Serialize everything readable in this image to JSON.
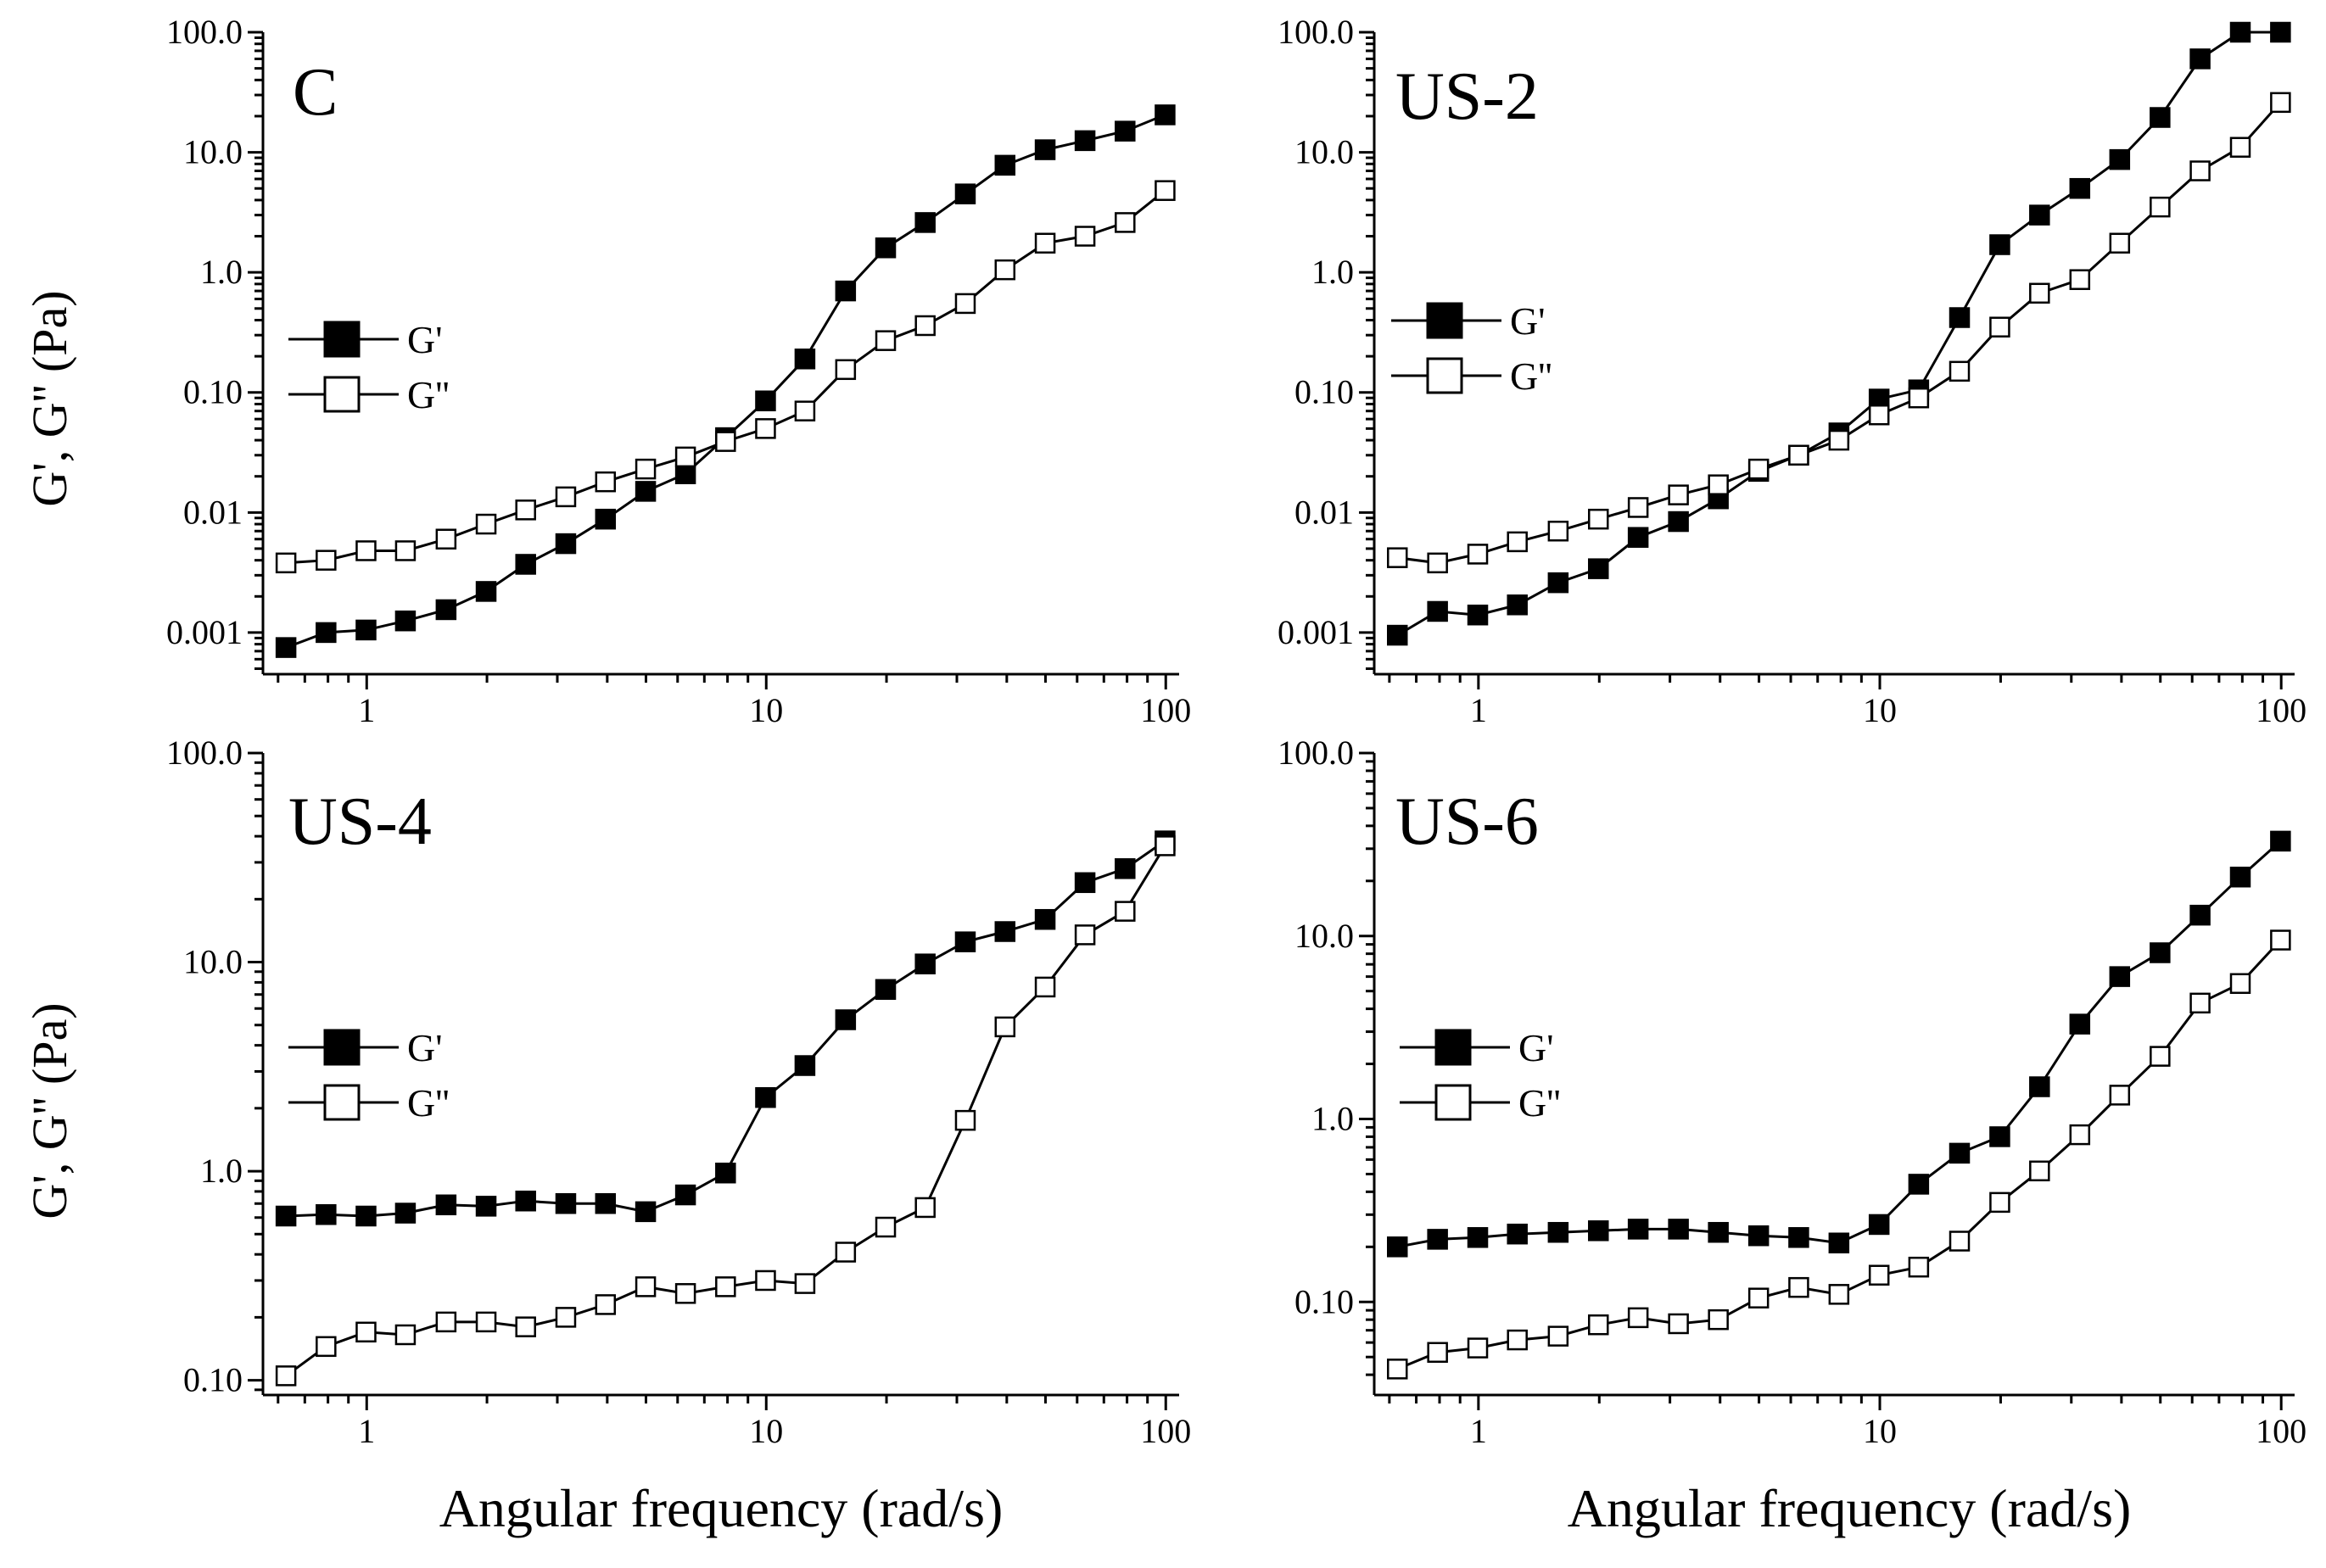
{
  "figure": {
    "xlabel": "Angular frequency (rad/s)",
    "ylabel": "G', G'' (Pa)"
  },
  "chart_data": [
    {
      "type": "line",
      "title": "C",
      "xscale": "log",
      "yscale": "log",
      "xlim": [
        0.55,
        108
      ],
      "ylim": [
        0.00045,
        100
      ],
      "xticks": [
        1,
        10,
        100
      ],
      "xtick_labels": [
        "1",
        "10",
        "100"
      ],
      "yticks": [
        0.001,
        0.01,
        0.1,
        1,
        10,
        100
      ],
      "ytick_labels": [
        "0.001",
        "0.01",
        "0.10",
        "1.0",
        "10.0",
        "100.0"
      ],
      "xlabel": "Angular frequency (rad/s)",
      "ylabel": "G', G'' (Pa)",
      "legend_position": "middle-left",
      "x": [
        0.628,
        0.791,
        0.996,
        1.25,
        1.58,
        1.99,
        2.5,
        3.15,
        3.96,
        4.99,
        6.28,
        7.91,
        9.96,
        12.5,
        15.8,
        19.9,
        25.0,
        31.5,
        39.6,
        49.9,
        62.8,
        79.1,
        99.6
      ],
      "series": [
        {
          "name": "G'",
          "marker": "filled-square",
          "values": [
            0.00075,
            0.001,
            0.00105,
            0.00125,
            0.00155,
            0.0022,
            0.0037,
            0.0055,
            0.0088,
            0.015,
            0.021,
            0.042,
            0.085,
            0.19,
            0.7,
            1.6,
            2.6,
            4.5,
            7.8,
            10.5,
            12.5,
            15,
            16.5
          ],
          "values_tail": [
            20.5
          ]
        },
        {
          "name": "G''",
          "marker": "open-square",
          "values": [
            0.0038,
            0.004,
            0.0048,
            0.0048,
            0.006,
            0.008,
            0.0105,
            0.0135,
            0.018,
            0.023,
            0.029,
            0.039,
            0.05,
            0.07,
            0.155,
            0.27,
            0.36,
            0.55,
            1.05,
            1.75,
            2,
            2.6,
            3.9
          ],
          "values_tail": [
            4.8
          ]
        }
      ]
    },
    {
      "type": "line",
      "title": "US-2",
      "xscale": "log",
      "yscale": "log",
      "xlim": [
        0.55,
        108
      ],
      "ylim": [
        0.00045,
        100
      ],
      "xticks": [
        1,
        10,
        100
      ],
      "xtick_labels": [
        "1",
        "10",
        "100"
      ],
      "yticks": [
        0.001,
        0.01,
        0.1,
        1,
        10,
        100
      ],
      "ytick_labels": [
        "0.001",
        "0.01",
        "0.10",
        "1.0",
        "10.0",
        "100.0"
      ],
      "xlabel": "Angular frequency (rad/s)",
      "ylabel": "",
      "legend_position": "middle-left",
      "x": [
        0.628,
        0.791,
        0.996,
        1.25,
        1.58,
        1.99,
        2.5,
        3.15,
        3.96,
        4.99,
        6.28,
        7.91,
        9.96,
        12.5,
        15.8,
        19.9,
        25.0,
        31.5,
        39.6,
        49.9,
        62.8,
        79.1,
        99.6
      ],
      "series": [
        {
          "name": "G'",
          "marker": "filled-square",
          "values": [
            0.00095,
            0.0015,
            0.0014,
            0.0017,
            0.0026,
            0.0034,
            0.0062,
            0.0084,
            0.013,
            0.022,
            0.03,
            0.046,
            0.088,
            0.105,
            0.42,
            1.7,
            3,
            5,
            8.7,
            19.5,
            60,
            100,
            100
          ],
          "values_tail": [
            100
          ]
        },
        {
          "name": "G''",
          "marker": "open-square",
          "values": [
            0.0042,
            0.0038,
            0.0045,
            0.0057,
            0.007,
            0.0088,
            0.011,
            0.014,
            0.017,
            0.023,
            0.03,
            0.04,
            0.065,
            0.09,
            0.15,
            0.35,
            0.67,
            0.87,
            1.75,
            3.5,
            7,
            11,
            22
          ],
          "values_tail": [
            26
          ]
        }
      ]
    },
    {
      "type": "line",
      "title": "US-4",
      "xscale": "log",
      "yscale": "log",
      "xlim": [
        0.55,
        108
      ],
      "ylim": [
        0.085,
        100
      ],
      "xticks": [
        1,
        10,
        100
      ],
      "xtick_labels": [
        "1",
        "10",
        "100"
      ],
      "yticks": [
        0.1,
        1,
        10,
        100
      ],
      "ytick_labels": [
        "0.10",
        "1.0",
        "10.0",
        "100.0"
      ],
      "xlabel": "Angular frequency (rad/s)",
      "ylabel": "G', G'' (Pa)",
      "legend_position": "middle-left",
      "x": [
        0.628,
        0.791,
        0.996,
        1.25,
        1.58,
        1.99,
        2.5,
        3.15,
        3.96,
        4.99,
        6.28,
        7.91,
        9.96,
        12.5,
        15.8,
        19.9,
        25.0,
        31.5,
        39.6,
        49.9,
        62.8,
        79.1,
        99.6
      ],
      "series": [
        {
          "name": "G'",
          "marker": "filled-square",
          "values": [
            0.61,
            0.62,
            0.61,
            0.63,
            0.69,
            0.68,
            0.72,
            0.7,
            0.7,
            0.64,
            0.77,
            0.98,
            2.25,
            3.2,
            5.3,
            7.4,
            9.8,
            12.5,
            14,
            16,
            24,
            28,
            32
          ],
          "values_tail": [
            38
          ]
        },
        {
          "name": "G''",
          "marker": "open-square",
          "values": [
            0.105,
            0.145,
            0.17,
            0.165,
            0.19,
            0.19,
            0.18,
            0.2,
            0.23,
            0.28,
            0.26,
            0.28,
            0.3,
            0.29,
            0.41,
            0.54,
            0.67,
            1.75,
            4.9,
            7.6,
            13.5,
            17.5,
            25
          ],
          "values_tail": [
            36
          ]
        }
      ]
    },
    {
      "type": "line",
      "title": "US-6",
      "xscale": "log",
      "yscale": "log",
      "xlim": [
        0.55,
        108
      ],
      "ylim": [
        0.031,
        100
      ],
      "xticks": [
        1,
        10,
        100
      ],
      "xtick_labels": [
        "1",
        "10",
        "100"
      ],
      "yticks": [
        0.1,
        1,
        10,
        100
      ],
      "ytick_labels": [
        "0.10",
        "1.0",
        "10.0",
        "100.0"
      ],
      "xlabel": "Angular frequency (rad/s)",
      "ylabel": "",
      "legend_position": "middle-left",
      "x": [
        0.628,
        0.791,
        0.996,
        1.25,
        1.58,
        1.99,
        2.5,
        3.15,
        3.96,
        4.99,
        6.28,
        7.91,
        9.96,
        12.5,
        15.8,
        19.9,
        25.0,
        31.5,
        39.6,
        49.9,
        62.8,
        79.1,
        99.6
      ],
      "series": [
        {
          "name": "G'",
          "marker": "filled-square",
          "values": [
            0.2,
            0.22,
            0.225,
            0.235,
            0.24,
            0.245,
            0.25,
            0.25,
            0.24,
            0.23,
            0.225,
            0.21,
            0.265,
            0.44,
            0.65,
            0.8,
            1.5,
            3.3,
            6,
            8.1,
            13,
            21,
            27
          ],
          "values_tail": [
            33
          ]
        },
        {
          "name": "G''",
          "marker": "open-square",
          "values": [
            0.043,
            0.053,
            0.056,
            0.062,
            0.065,
            0.075,
            0.082,
            0.076,
            0.08,
            0.105,
            0.12,
            0.11,
            0.14,
            0.155,
            0.215,
            0.35,
            0.52,
            0.82,
            1.35,
            2.2,
            4.3,
            5.5,
            7.7
          ],
          "values_tail": [
            9.5
          ]
        }
      ]
    }
  ]
}
